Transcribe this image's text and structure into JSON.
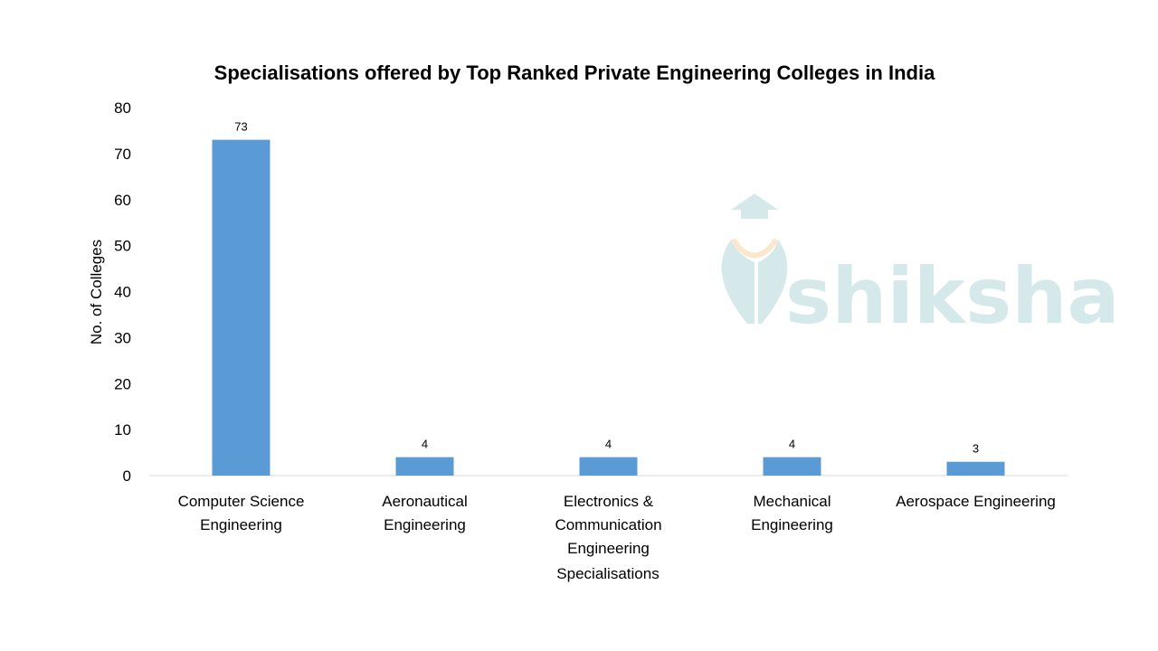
{
  "chart_data": {
    "type": "bar",
    "title": "Specialisations offered by Top Ranked  Private Engineering Colleges in India",
    "xlabel": "Specialisations",
    "ylabel": "No. of Colleges",
    "categories": [
      "Computer Science\nEngineering",
      "Aeronautical\nEngineering",
      "Electronics &\nCommunication\nEngineering",
      "Mechanical\nEngineering",
      "Aerospace Engineering"
    ],
    "values": [
      73,
      4,
      4,
      4,
      3
    ],
    "data_labels": [
      "73",
      "4",
      "4",
      "4",
      "3"
    ],
    "ylim": [
      0,
      80
    ],
    "yticks": [
      "0",
      "10",
      "20",
      "30",
      "40",
      "50",
      "60",
      "70",
      "80"
    ],
    "grid": false,
    "legend": "none",
    "bar_color": "#5B9BD5"
  },
  "watermark": {
    "text": "shiksha",
    "color": "#d3e8ea",
    "accent": "#fbe6cc"
  }
}
